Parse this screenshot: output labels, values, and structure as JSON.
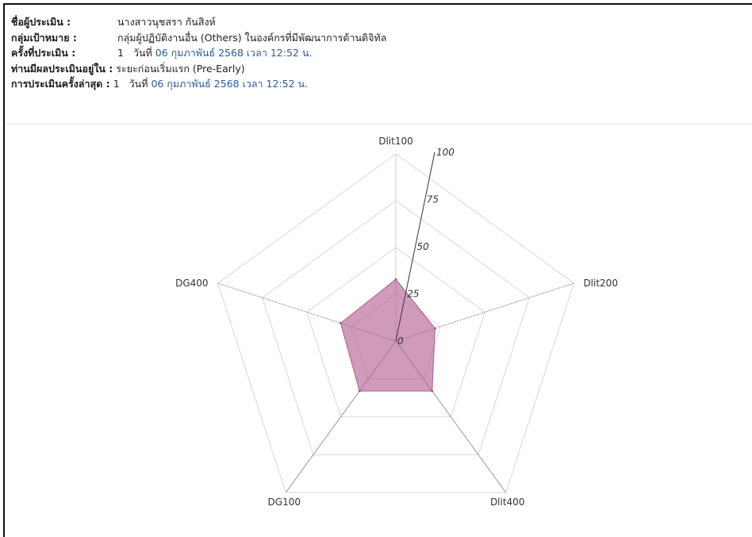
{
  "header": {
    "assessor_label": "ชื่อผู้ประเมิน :",
    "assessor_value": "นางสาวนุชสรา กันสิงห์",
    "group_label": "กลุ่มเป้าหมาย :",
    "group_value": "กลุ่มผู้ปฏิบัติงานอื่น (Others) ในองค์กรที่มีพัฒนาการด้านดิจิทัล",
    "round_label": "ครั้งที่ประเมิน :",
    "round_num": "1",
    "round_date_prefix": "วันที่",
    "round_date": "06 กุมภาพันธ์ 2568 เวลา 12:52 น.",
    "result_label": "ท่านมีผลประเมินอยู่ใน :",
    "result_value": "ระยะก่อนเริ่มแรก (Pre-Early)",
    "latest_label": "การประเมินครั้งล่าสุด :",
    "latest_num": "1",
    "latest_date_prefix": "วันที่",
    "latest_date": "06 กุมภาพันธ์ 2568 เวลา 12:52 น."
  },
  "chart_data": {
    "type": "radar",
    "categories": [
      "Dlit100",
      "Dlit200",
      "Dlit400",
      "DG100",
      "DG400"
    ],
    "series": [
      {
        "values": [
          33,
          22,
          33,
          33,
          31
        ],
        "color": "#b0588c"
      }
    ],
    "r_range": [
      0,
      100
    ],
    "r_ticks": [
      0,
      25,
      50,
      75,
      100
    ],
    "grid": true
  }
}
